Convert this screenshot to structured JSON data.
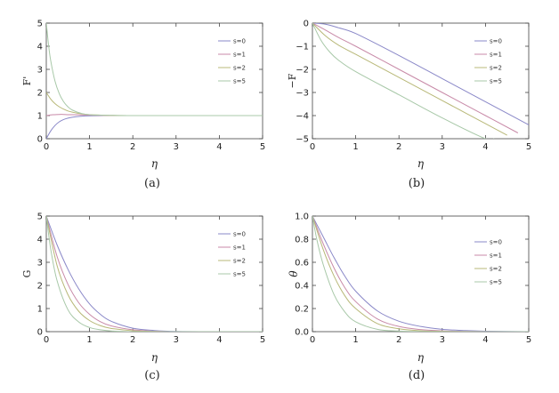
{
  "chart_data": [
    {
      "type": "line",
      "panel": "(a)",
      "xlabel": "η",
      "ylabel": "F'",
      "xlim": [
        0,
        5
      ],
      "ylim": [
        0,
        5
      ],
      "xticks": [
        "0",
        "1",
        "2",
        "3",
        "4",
        "5"
      ],
      "yticks": [
        "0",
        "1",
        "2",
        "3",
        "4",
        "5"
      ],
      "legend": [
        "s=0",
        "s=1",
        "s=2",
        "s=5"
      ],
      "legend_position": "top-right",
      "series": [
        {
          "name": "s=0",
          "color": "#8a88c8",
          "x": [
            0,
            0.1,
            0.2,
            0.3,
            0.4,
            0.5,
            0.6,
            0.8,
            1.0,
            1.5,
            2,
            3,
            4,
            5
          ],
          "y": [
            0,
            0.33,
            0.57,
            0.73,
            0.83,
            0.89,
            0.93,
            0.97,
            0.99,
            1,
            1,
            1,
            1,
            1
          ]
        },
        {
          "name": "s=1",
          "color": "#c88aa8",
          "x": [
            0,
            0.1,
            0.2,
            0.3,
            0.4,
            0.5,
            0.6,
            0.8,
            1.0,
            1.5,
            2,
            3,
            4,
            5
          ],
          "y": [
            1,
            1.03,
            1.04,
            1.05,
            1.05,
            1.04,
            1.04,
            1.03,
            1.02,
            1,
            1,
            1,
            1,
            1
          ]
        },
        {
          "name": "s=2",
          "color": "#b8b878",
          "x": [
            0,
            0.1,
            0.2,
            0.3,
            0.4,
            0.5,
            0.6,
            0.8,
            1.0,
            1.5,
            2,
            3,
            4,
            5
          ],
          "y": [
            2,
            1.72,
            1.52,
            1.38,
            1.28,
            1.2,
            1.15,
            1.08,
            1.04,
            1.01,
            1,
            1,
            1,
            1
          ]
        },
        {
          "name": "s=5",
          "color": "#a8c8a8",
          "x": [
            0,
            0.05,
            0.1,
            0.2,
            0.3,
            0.4,
            0.5,
            0.6,
            0.8,
            1.0,
            1.5,
            2,
            3,
            4,
            5
          ],
          "y": [
            5,
            4.1,
            3.4,
            2.5,
            1.95,
            1.6,
            1.38,
            1.24,
            1.1,
            1.04,
            1.01,
            1,
            1,
            1,
            1
          ]
        }
      ]
    },
    {
      "type": "line",
      "panel": "(b)",
      "xlabel": "η",
      "ylabel": "−F",
      "xlim": [
        0,
        5
      ],
      "ylim": [
        -5,
        0
      ],
      "xticks": [
        "0",
        "1",
        "2",
        "3",
        "4",
        "5"
      ],
      "yticks": [
        "0",
        "−1",
        "−2",
        "−3",
        "−4",
        "−5"
      ],
      "legend": [
        "s=0",
        "s=1",
        "s=2",
        "s=5"
      ],
      "legend_position": "top-right",
      "series": [
        {
          "name": "s=0",
          "color": "#8a88c8",
          "x": [
            0,
            0.3,
            0.6,
            1,
            2,
            3,
            4,
            5
          ],
          "y": [
            0,
            -0.05,
            -0.2,
            -0.45,
            -1.4,
            -2.4,
            -3.4,
            -4.4
          ]
        },
        {
          "name": "s=1",
          "color": "#c88aa8",
          "x": [
            0,
            0.3,
            0.6,
            1,
            2,
            3,
            4,
            4.75
          ],
          "y": [
            0,
            -0.3,
            -0.62,
            -1.0,
            -2.0,
            -3.0,
            -4.0,
            -4.75
          ]
        },
        {
          "name": "s=2",
          "color": "#b8b878",
          "x": [
            0,
            0.3,
            0.6,
            1,
            2,
            3,
            4,
            4.5
          ],
          "y": [
            0,
            -0.55,
            -0.95,
            -1.35,
            -2.35,
            -3.35,
            -4.35,
            -4.85
          ]
        },
        {
          "name": "s=5",
          "color": "#a8c8a8",
          "x": [
            0,
            0.2,
            0.4,
            0.6,
            1,
            2,
            3,
            4,
            4.2
          ],
          "y": [
            0,
            -0.75,
            -1.25,
            -1.6,
            -2.1,
            -3.1,
            -4.1,
            -5.0,
            -5.0
          ]
        }
      ]
    },
    {
      "type": "line",
      "panel": "(c)",
      "xlabel": "η",
      "ylabel": "G",
      "xlim": [
        0,
        5
      ],
      "ylim": [
        0,
        5
      ],
      "xticks": [
        "0",
        "1",
        "2",
        "3",
        "4",
        "5"
      ],
      "yticks": [
        "0",
        "1",
        "2",
        "3",
        "4",
        "5"
      ],
      "legend": [
        "s=0",
        "s=1",
        "s=2",
        "s=5"
      ],
      "legend_position": "top-right",
      "series": [
        {
          "name": "s=0",
          "color": "#8a88c8",
          "x": [
            0,
            0.25,
            0.5,
            0.75,
            1,
            1.25,
            1.5,
            2,
            2.5,
            3,
            4,
            5
          ],
          "y": [
            5,
            3.75,
            2.7,
            1.85,
            1.2,
            0.75,
            0.45,
            0.15,
            0.05,
            0.01,
            0,
            0
          ]
        },
        {
          "name": "s=1",
          "color": "#c88aa8",
          "x": [
            0,
            0.25,
            0.5,
            0.75,
            1,
            1.25,
            1.5,
            2,
            2.5,
            3,
            4,
            5
          ],
          "y": [
            5,
            3.25,
            2.05,
            1.25,
            0.75,
            0.43,
            0.25,
            0.08,
            0.02,
            0,
            0,
            0
          ]
        },
        {
          "name": "s=2",
          "color": "#b8b878",
          "x": [
            0,
            0.25,
            0.5,
            0.75,
            1,
            1.25,
            1.5,
            2,
            2.5,
            3,
            4,
            5
          ],
          "y": [
            5,
            2.85,
            1.6,
            0.88,
            0.48,
            0.26,
            0.14,
            0.04,
            0.01,
            0,
            0,
            0
          ]
        },
        {
          "name": "s=5",
          "color": "#a8c8a8",
          "x": [
            0,
            0.1,
            0.25,
            0.5,
            0.75,
            1,
            1.25,
            1.5,
            2,
            3,
            4,
            5
          ],
          "y": [
            5,
            3.6,
            2.2,
            0.95,
            0.42,
            0.18,
            0.08,
            0.03,
            0,
            0,
            0,
            0
          ]
        }
      ]
    },
    {
      "type": "line",
      "panel": "(d)",
      "xlabel": "η",
      "ylabel": "θ",
      "xlim": [
        0,
        5
      ],
      "ylim": [
        0,
        1
      ],
      "xticks": [
        "0",
        "1",
        "2",
        "3",
        "4",
        "5"
      ],
      "yticks": [
        "0.0",
        "0.2",
        "0.4",
        "0.6",
        "0.8",
        "1.0"
      ],
      "legend": [
        "s=0",
        "s=1",
        "s=2",
        "s=5"
      ],
      "legend_position": "right",
      "series": [
        {
          "name": "s=0",
          "color": "#8a88c8",
          "x": [
            0,
            0.25,
            0.5,
            0.75,
            1,
            1.5,
            2,
            2.5,
            3,
            3.5,
            4,
            5
          ],
          "y": [
            1,
            0.82,
            0.64,
            0.48,
            0.35,
            0.18,
            0.09,
            0.045,
            0.02,
            0.01,
            0.004,
            0
          ]
        },
        {
          "name": "s=1",
          "color": "#c88aa8",
          "x": [
            0,
            0.25,
            0.5,
            0.75,
            1,
            1.5,
            2,
            2.5,
            3,
            3.5,
            4,
            5
          ],
          "y": [
            1,
            0.76,
            0.55,
            0.38,
            0.26,
            0.11,
            0.045,
            0.018,
            0.007,
            0.003,
            0.001,
            0
          ]
        },
        {
          "name": "s=2",
          "color": "#b8b878",
          "x": [
            0,
            0.25,
            0.5,
            0.75,
            1,
            1.5,
            2,
            2.5,
            3,
            4,
            5
          ],
          "y": [
            1,
            0.71,
            0.48,
            0.31,
            0.2,
            0.07,
            0.025,
            0.008,
            0.003,
            0,
            0
          ]
        },
        {
          "name": "s=5",
          "color": "#a8c8a8",
          "x": [
            0,
            0.1,
            0.25,
            0.5,
            0.75,
            1,
            1.5,
            2,
            2.5,
            3,
            4,
            5
          ],
          "y": [
            1,
            0.8,
            0.58,
            0.32,
            0.17,
            0.085,
            0.02,
            0.005,
            0.001,
            0,
            0,
            0
          ]
        }
      ]
    }
  ]
}
